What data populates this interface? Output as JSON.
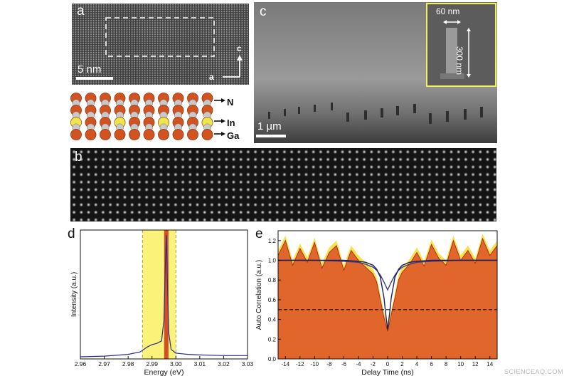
{
  "panel_a": {
    "label": "a",
    "scale_bar": "5 nm",
    "axis_c": "c",
    "axis_a": "a",
    "atom_labels": [
      "N",
      "In",
      "Ga"
    ]
  },
  "panel_b": {
    "label": "b"
  },
  "panel_c": {
    "label": "c",
    "scale_bar": "1 µm",
    "inset_width": "60 nm",
    "inset_height": "300 nm"
  },
  "chart_data": [
    {
      "panel": "d",
      "type": "line",
      "xlabel": "Energy (eV)",
      "ylabel": "Intensity (a.u.)",
      "xlim": [
        2.96,
        3.03
      ],
      "xticks": [
        "2.96",
        "2.97",
        "2.98",
        "2.99",
        "3.00",
        "3.01",
        "3.02",
        "3.03"
      ],
      "highlight_band": [
        2.986,
        3.0
      ],
      "peak_center": 2.996,
      "series": [
        {
          "x": [
            2.96,
            2.97,
            2.98,
            2.985,
            2.988,
            2.99,
            2.992,
            2.994,
            2.995,
            2.9955,
            2.996,
            2.9965,
            2.997,
            2.998,
            3.0,
            3.005,
            3.01,
            3.02,
            3.03
          ],
          "values": [
            0.0,
            0.005,
            0.02,
            0.04,
            0.08,
            0.1,
            0.11,
            0.13,
            0.3,
            0.7,
            1.0,
            0.6,
            0.2,
            0.06,
            0.03,
            0.02,
            0.015,
            0.01,
            0.01
          ]
        }
      ],
      "color": "#2b2b8a",
      "band_color": "#fbf27a",
      "peak_color": "#d33a1a",
      "grid": false
    },
    {
      "panel": "e",
      "type": "area",
      "xlabel": "Delay Time (ns)",
      "ylabel": "Auto Correlation (a.u.)",
      "xlim": [
        -15,
        15
      ],
      "ylim": [
        0.0,
        1.3
      ],
      "xticks": [
        "-14",
        "-12",
        "-10",
        "-8",
        "-6",
        "-4",
        "-2",
        "0",
        "2",
        "4",
        "6",
        "8",
        "10",
        "12",
        "14"
      ],
      "yticks": [
        "0.0",
        "0.2",
        "0.4",
        "0.6",
        "0.8",
        "1.0",
        "1.2"
      ],
      "threshold": 0.5,
      "series": [
        {
          "x": [
            -15,
            -14,
            -13,
            -12,
            -11,
            -10,
            -9,
            -8,
            -7,
            -6,
            -5,
            -4,
            -3,
            -2,
            -1.5,
            -1,
            -0.5,
            0,
            0.5,
            1,
            1.5,
            2,
            3,
            4,
            5,
            6,
            7,
            8,
            9,
            10,
            11,
            12,
            13,
            14,
            15
          ],
          "values": [
            1.05,
            1.2,
            0.95,
            1.12,
            0.98,
            1.18,
            0.92,
            1.08,
            1.15,
            0.9,
            1.1,
            1.0,
            0.93,
            0.86,
            0.78,
            0.6,
            0.42,
            0.28,
            0.45,
            0.62,
            0.8,
            0.88,
            0.96,
            1.08,
            0.94,
            1.16,
            1.02,
            0.95,
            1.2,
            1.0,
            1.1,
            0.97,
            1.22,
            1.05,
            1.15
          ]
        },
        {
          "x": [
            -15,
            -10,
            -6,
            -4,
            -3,
            -2,
            -1.5,
            -1,
            -0.5,
            0,
            0.5,
            1,
            1.5,
            2,
            3,
            4,
            6,
            10,
            15
          ],
          "values": [
            1.0,
            1.0,
            0.99,
            0.98,
            0.96,
            0.93,
            0.9,
            0.85,
            0.78,
            0.7,
            0.78,
            0.85,
            0.9,
            0.93,
            0.96,
            0.98,
            0.99,
            1.0,
            1.0
          ]
        },
        {
          "x": [
            -15,
            -6,
            -4,
            -3,
            -2,
            -1.5,
            -1,
            -0.5,
            -0.25,
            0,
            0.25,
            0.5,
            1,
            1.5,
            2,
            3,
            4,
            6,
            15
          ],
          "values": [
            1.0,
            1.0,
            0.99,
            0.98,
            0.95,
            0.91,
            0.83,
            0.62,
            0.45,
            0.3,
            0.45,
            0.62,
            0.83,
            0.91,
            0.95,
            0.98,
            0.99,
            1.0,
            1.0
          ]
        }
      ],
      "fill_color": "#e0662b",
      "data_line_color": "#b02418",
      "fit_color_outer": "#3a3a8c",
      "fit_color_inner": "#1f1f55",
      "highlight_color": "#f4e34a",
      "grid": false
    }
  ],
  "watermark": "SCIENCEAQ.COM"
}
